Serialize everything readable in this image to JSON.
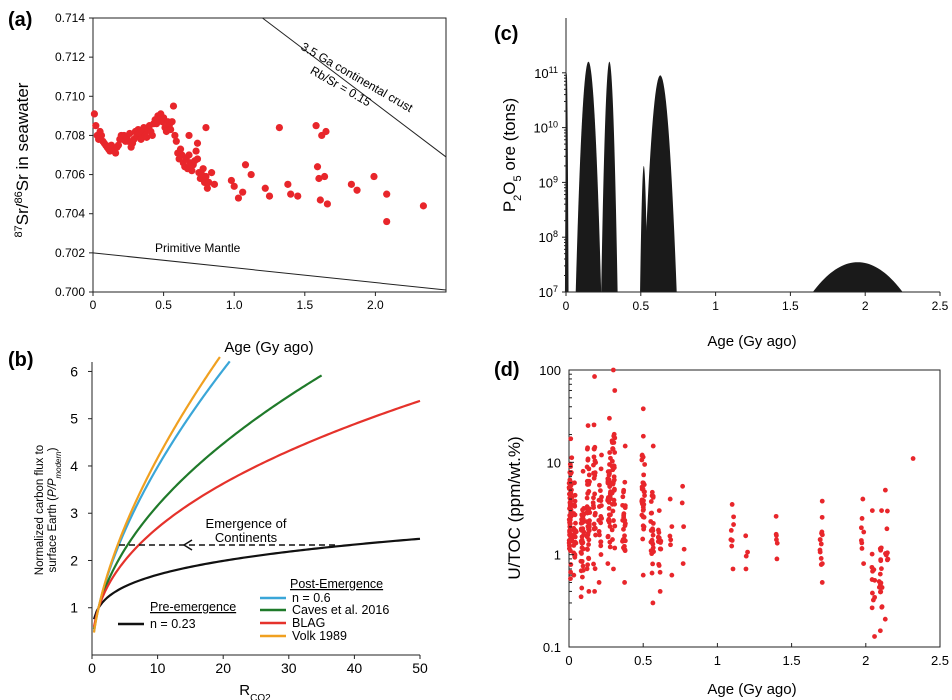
{
  "chart_data": [
    {
      "panel": "(a)",
      "type": "scatter",
      "xlabel": "Age (Gy ago)",
      "ylabel": "87Sr/86Sr in seawater",
      "xlim": [
        0,
        2.5
      ],
      "ylim": [
        0.7,
        0.714
      ],
      "x_ticks": [
        "0",
        "0.5",
        "1.0",
        "1.5",
        "2.0"
      ],
      "y_ticks": [
        "0.700",
        "0.702",
        "0.704",
        "0.706",
        "0.708",
        "0.710",
        "0.712",
        "0.714"
      ],
      "grid": false,
      "color": "#e8262b",
      "lines": [
        {
          "label": "Primitive Mantle",
          "x": [
            0,
            2.5
          ],
          "y": [
            0.702,
            0.7001
          ]
        },
        {
          "label_lines": [
            "3.5 Ga continental crust",
            "Rb/Sr = 0.15"
          ],
          "x": [
            1.2,
            2.5
          ],
          "y": [
            0.714,
            0.7069
          ]
        }
      ],
      "points": [
        [
          0.01,
          0.7091
        ],
        [
          0.02,
          0.7085
        ],
        [
          0.03,
          0.708
        ],
        [
          0.04,
          0.7078
        ],
        [
          0.05,
          0.7082
        ],
        [
          0.06,
          0.708
        ],
        [
          0.07,
          0.7077
        ],
        [
          0.08,
          0.7076
        ],
        [
          0.09,
          0.7075
        ],
        [
          0.1,
          0.7074
        ],
        [
          0.11,
          0.7073
        ],
        [
          0.12,
          0.7072
        ],
        [
          0.13,
          0.7075
        ],
        [
          0.14,
          0.7073
        ],
        [
          0.15,
          0.7072
        ],
        [
          0.16,
          0.7071
        ],
        [
          0.17,
          0.7074
        ],
        [
          0.18,
          0.7075
        ],
        [
          0.19,
          0.7078
        ],
        [
          0.2,
          0.708
        ],
        [
          0.21,
          0.7078
        ],
        [
          0.22,
          0.708
        ],
        [
          0.23,
          0.7077
        ],
        [
          0.24,
          0.7079
        ],
        [
          0.25,
          0.7077
        ],
        [
          0.26,
          0.7081
        ],
        [
          0.27,
          0.7074
        ],
        [
          0.28,
          0.7076
        ],
        [
          0.29,
          0.7078
        ],
        [
          0.3,
          0.7082
        ],
        [
          0.31,
          0.708
        ],
        [
          0.32,
          0.7083
        ],
        [
          0.33,
          0.7081
        ],
        [
          0.34,
          0.7078
        ],
        [
          0.35,
          0.7082
        ],
        [
          0.36,
          0.7084
        ],
        [
          0.37,
          0.708
        ],
        [
          0.38,
          0.7079
        ],
        [
          0.39,
          0.7083
        ],
        [
          0.4,
          0.7085
        ],
        [
          0.41,
          0.7082
        ],
        [
          0.42,
          0.708
        ],
        [
          0.43,
          0.7086
        ],
        [
          0.44,
          0.7088
        ],
        [
          0.45,
          0.7086
        ],
        [
          0.46,
          0.709
        ],
        [
          0.47,
          0.7088
        ],
        [
          0.48,
          0.7091
        ],
        [
          0.49,
          0.7087
        ],
        [
          0.5,
          0.7089
        ],
        [
          0.51,
          0.7084
        ],
        [
          0.52,
          0.7082
        ],
        [
          0.53,
          0.7087
        ],
        [
          0.54,
          0.7085
        ],
        [
          0.55,
          0.7083
        ],
        [
          0.56,
          0.7087
        ],
        [
          0.57,
          0.7095
        ],
        [
          0.58,
          0.708
        ],
        [
          0.59,
          0.7077
        ],
        [
          0.6,
          0.7071
        ],
        [
          0.61,
          0.7068
        ],
        [
          0.62,
          0.7073
        ],
        [
          0.63,
          0.707
        ],
        [
          0.64,
          0.7066
        ],
        [
          0.65,
          0.7064
        ],
        [
          0.66,
          0.7068
        ],
        [
          0.67,
          0.7063
        ],
        [
          0.68,
          0.707
        ],
        [
          0.69,
          0.7066
        ],
        [
          0.7,
          0.7062
        ],
        [
          0.71,
          0.7065
        ],
        [
          0.72,
          0.7067
        ],
        [
          0.73,
          0.7072
        ],
        [
          0.74,
          0.7068
        ],
        [
          0.75,
          0.7061
        ],
        [
          0.76,
          0.7058
        ],
        [
          0.77,
          0.706
        ],
        [
          0.78,
          0.7063
        ],
        [
          0.79,
          0.7056
        ],
        [
          0.8,
          0.7059
        ],
        [
          0.81,
          0.7053
        ],
        [
          0.82,
          0.7056
        ],
        [
          0.84,
          0.7061
        ],
        [
          0.86,
          0.7055
        ],
        [
          0.8,
          0.7084
        ],
        [
          0.68,
          0.708
        ],
        [
          0.74,
          0.7076
        ],
        [
          0.98,
          0.7057
        ],
        [
          1.0,
          0.7054
        ],
        [
          1.03,
          0.7048
        ],
        [
          1.06,
          0.7051
        ],
        [
          1.08,
          0.7065
        ],
        [
          1.12,
          0.706
        ],
        [
          1.22,
          0.7053
        ],
        [
          1.25,
          0.7049
        ],
        [
          1.32,
          0.7084
        ],
        [
          1.38,
          0.7055
        ],
        [
          1.4,
          0.705
        ],
        [
          1.45,
          0.7049
        ],
        [
          1.58,
          0.7085
        ],
        [
          1.59,
          0.7064
        ],
        [
          1.6,
          0.7058
        ],
        [
          1.61,
          0.7047
        ],
        [
          1.62,
          0.708
        ],
        [
          1.64,
          0.7059
        ],
        [
          1.65,
          0.7082
        ],
        [
          1.66,
          0.7045
        ],
        [
          1.83,
          0.7055
        ],
        [
          1.87,
          0.7052
        ],
        [
          1.99,
          0.7059
        ],
        [
          2.08,
          0.705
        ],
        [
          2.08,
          0.7036
        ],
        [
          2.34,
          0.7044
        ]
      ]
    },
    {
      "panel": "(c)",
      "type": "area",
      "xlabel": "Age (Gy ago)",
      "ylabel": "P2O5 ore (tons)",
      "xlim": [
        0,
        2.5
      ],
      "yscale": "log",
      "ylim": [
        10000000.0,
        1000000000000.0
      ],
      "x_ticks": [
        "0",
        "0.5",
        "1",
        "1.5",
        "2",
        "2.5"
      ],
      "y_ticks": [
        "10^7",
        "10^8",
        "10^9",
        "10^10",
        "10^11"
      ],
      "color": "#1a1a1a",
      "peaks": [
        {
          "center": 0.005,
          "peak": 100000000000.0,
          "width": 0.012
        },
        {
          "center": 0.15,
          "peak": 160000000000.0,
          "width": 0.085
        },
        {
          "center": 0.29,
          "peak": 160000000000.0,
          "width": 0.055
        },
        {
          "center": 0.52,
          "peak": 2000000000.0,
          "width": 0.025
        },
        {
          "center": 0.63,
          "peak": 90000000000.0,
          "width": 0.11
        },
        {
          "center": 1.95,
          "peak": 35000000.0,
          "width": 0.3
        }
      ]
    },
    {
      "panel": "(b)",
      "type": "line",
      "xlabel": "RCO2",
      "ylabel": "Normalized carbon flux to surface Earth (P/Pmodern)",
      "xlim": [
        0,
        50
      ],
      "ylim": [
        0,
        6.2
      ],
      "x_ticks": [
        "0",
        "10",
        "20",
        "30",
        "40",
        "50"
      ],
      "y_ticks": [
        "1",
        "2",
        "3",
        "4",
        "5",
        "6"
      ],
      "annotation_lines": [
        "Emergence of",
        "Continents"
      ],
      "legend": {
        "post_title": "Post-Emergence",
        "pre_title": "Pre-emergence",
        "pre_label": "n = 0.23",
        "post_labels": [
          "n = 0.6",
          "Caves et al. 2016",
          "BLAG",
          "Volk 1989"
        ]
      },
      "series": [
        {
          "name": "n = 0.23",
          "color": "#111111",
          "kind": "power",
          "exponent": 0.23,
          "xmax": 50
        },
        {
          "name": "n = 0.6",
          "color": "#3aa6d8",
          "kind": "power",
          "exponent": 0.6,
          "xmax": 21
        },
        {
          "name": "Caves et al. 2016",
          "color": "#1f7a2a",
          "kind": "power",
          "exponent": 0.5,
          "xmax": 35
        },
        {
          "name": "BLAG",
          "color": "#e5322b",
          "kind": "power",
          "exponent": 0.43,
          "xmax": 50
        },
        {
          "name": "Volk 1989",
          "color": "#f0a020",
          "kind": "power",
          "exponent": 0.62,
          "xmax": 19.5
        }
      ]
    },
    {
      "panel": "(d)",
      "type": "scatter",
      "xlabel": "Age (Gy ago)",
      "ylabel": "U/TOC (ppm/wt.%)",
      "xlim": [
        0,
        2.5
      ],
      "yscale": "log",
      "ylim": [
        0.1,
        100
      ],
      "x_ticks": [
        "0",
        "0.5",
        "1",
        "1.5",
        "2",
        "2.5"
      ],
      "y_ticks": [
        "0.1",
        "1",
        "10",
        "100"
      ],
      "color": "#e8262b",
      "clusters": [
        {
          "x": 0.01,
          "n": 70,
          "lo": 0.55,
          "hi": 18
        },
        {
          "x": 0.04,
          "n": 25,
          "lo": 0.6,
          "hi": 6
        },
        {
          "x": 0.09,
          "n": 40,
          "lo": 0.35,
          "hi": 8
        },
        {
          "x": 0.13,
          "n": 45,
          "lo": 0.4,
          "hi": 25
        },
        {
          "x": 0.17,
          "n": 30,
          "lo": 0.4,
          "hi": 85
        },
        {
          "x": 0.21,
          "n": 20,
          "lo": 0.5,
          "hi": 12
        },
        {
          "x": 0.27,
          "n": 40,
          "lo": 0.8,
          "hi": 30
        },
        {
          "x": 0.3,
          "n": 35,
          "lo": 0.7,
          "hi": 100
        },
        {
          "x": 0.37,
          "n": 30,
          "lo": 0.5,
          "hi": 15
        },
        {
          "x": 0.5,
          "n": 35,
          "lo": 0.6,
          "hi": 38
        },
        {
          "x": 0.56,
          "n": 25,
          "lo": 0.3,
          "hi": 15
        },
        {
          "x": 0.61,
          "n": 15,
          "lo": 0.4,
          "hi": 3
        },
        {
          "x": 0.69,
          "n": 6,
          "lo": 0.6,
          "hi": 4
        },
        {
          "x": 0.77,
          "n": 5,
          "lo": 0.8,
          "hi": 5.5
        },
        {
          "x": 1.1,
          "n": 8,
          "lo": 0.7,
          "hi": 3.5
        },
        {
          "x": 1.2,
          "n": 4,
          "lo": 0.7,
          "hi": 1.6
        },
        {
          "x": 1.4,
          "n": 6,
          "lo": 0.9,
          "hi": 2.6
        },
        {
          "x": 1.7,
          "n": 14,
          "lo": 0.5,
          "hi": 3.8
        },
        {
          "x": 1.98,
          "n": 8,
          "lo": 0.8,
          "hi": 4
        },
        {
          "x": 2.05,
          "n": 12,
          "lo": 0.13,
          "hi": 3
        },
        {
          "x": 2.1,
          "n": 18,
          "lo": 0.15,
          "hi": 3
        },
        {
          "x": 2.14,
          "n": 10,
          "lo": 0.2,
          "hi": 5
        },
        {
          "x": 2.32,
          "n": 1,
          "lo": 11,
          "hi": 11
        }
      ]
    }
  ]
}
